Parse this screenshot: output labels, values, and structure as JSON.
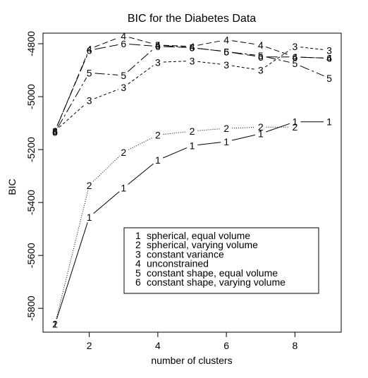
{
  "chart_data": {
    "type": "line",
    "title": "BIC for the Diabetes Data",
    "xlabel": "number of clusters",
    "ylabel": "BIC",
    "xlim": [
      0.65,
      9.35
    ],
    "ylim": [
      -5890,
      -4760
    ],
    "x": [
      1,
      2,
      3,
      4,
      5,
      6,
      7,
      8,
      9
    ],
    "xticks": [
      2,
      4,
      6,
      8
    ],
    "xtick_labels": [
      "2",
      "4",
      "6",
      "8"
    ],
    "yticks": [
      -5800,
      -5600,
      -5400,
      -5200,
      -5000,
      -4800
    ],
    "ytick_labels": [
      "-5800",
      "-5600",
      "-5400",
      "-5200",
      "-5000",
      "-4800"
    ],
    "grid": false,
    "legend_position": "center-right",
    "series": [
      {
        "name": "spherical, equal volume",
        "marker": "1",
        "dash": "",
        "values": [
          -5860,
          -5455,
          -5345,
          -5240,
          -5185,
          -5170,
          -5140,
          -5095,
          -5095
        ]
      },
      {
        "name": "spherical, varying volume",
        "marker": "2",
        "dash": "1 2",
        "values": [
          -5860,
          -5335,
          -5210,
          -5145,
          -5130,
          -5120,
          -5115,
          -5115,
          null
        ]
      },
      {
        "name": "constant variance",
        "marker": "3",
        "dash": "4 3",
        "values": [
          -5130,
          -5015,
          -4965,
          -4870,
          -4865,
          -4880,
          -4900,
          -4810,
          -4825
        ]
      },
      {
        "name": "unconstrained",
        "marker": "4",
        "dash": "8 4",
        "values": [
          -5130,
          -4820,
          -4770,
          -4805,
          -4810,
          -4785,
          -4805,
          -4850,
          -4855
        ]
      },
      {
        "name": "constant shape, equal volume",
        "marker": "5",
        "dash": "14 4 3 4",
        "values": [
          -5135,
          -4910,
          -4920,
          -4805,
          -4815,
          -4830,
          -4845,
          -4875,
          -4930
        ]
      },
      {
        "name": "constant shape, varying volume",
        "marker": "6",
        "dash": "16 5",
        "values": [
          -5130,
          -4825,
          -4800,
          -4810,
          -4815,
          -4830,
          -4850,
          -4850,
          -4855
        ]
      }
    ]
  }
}
